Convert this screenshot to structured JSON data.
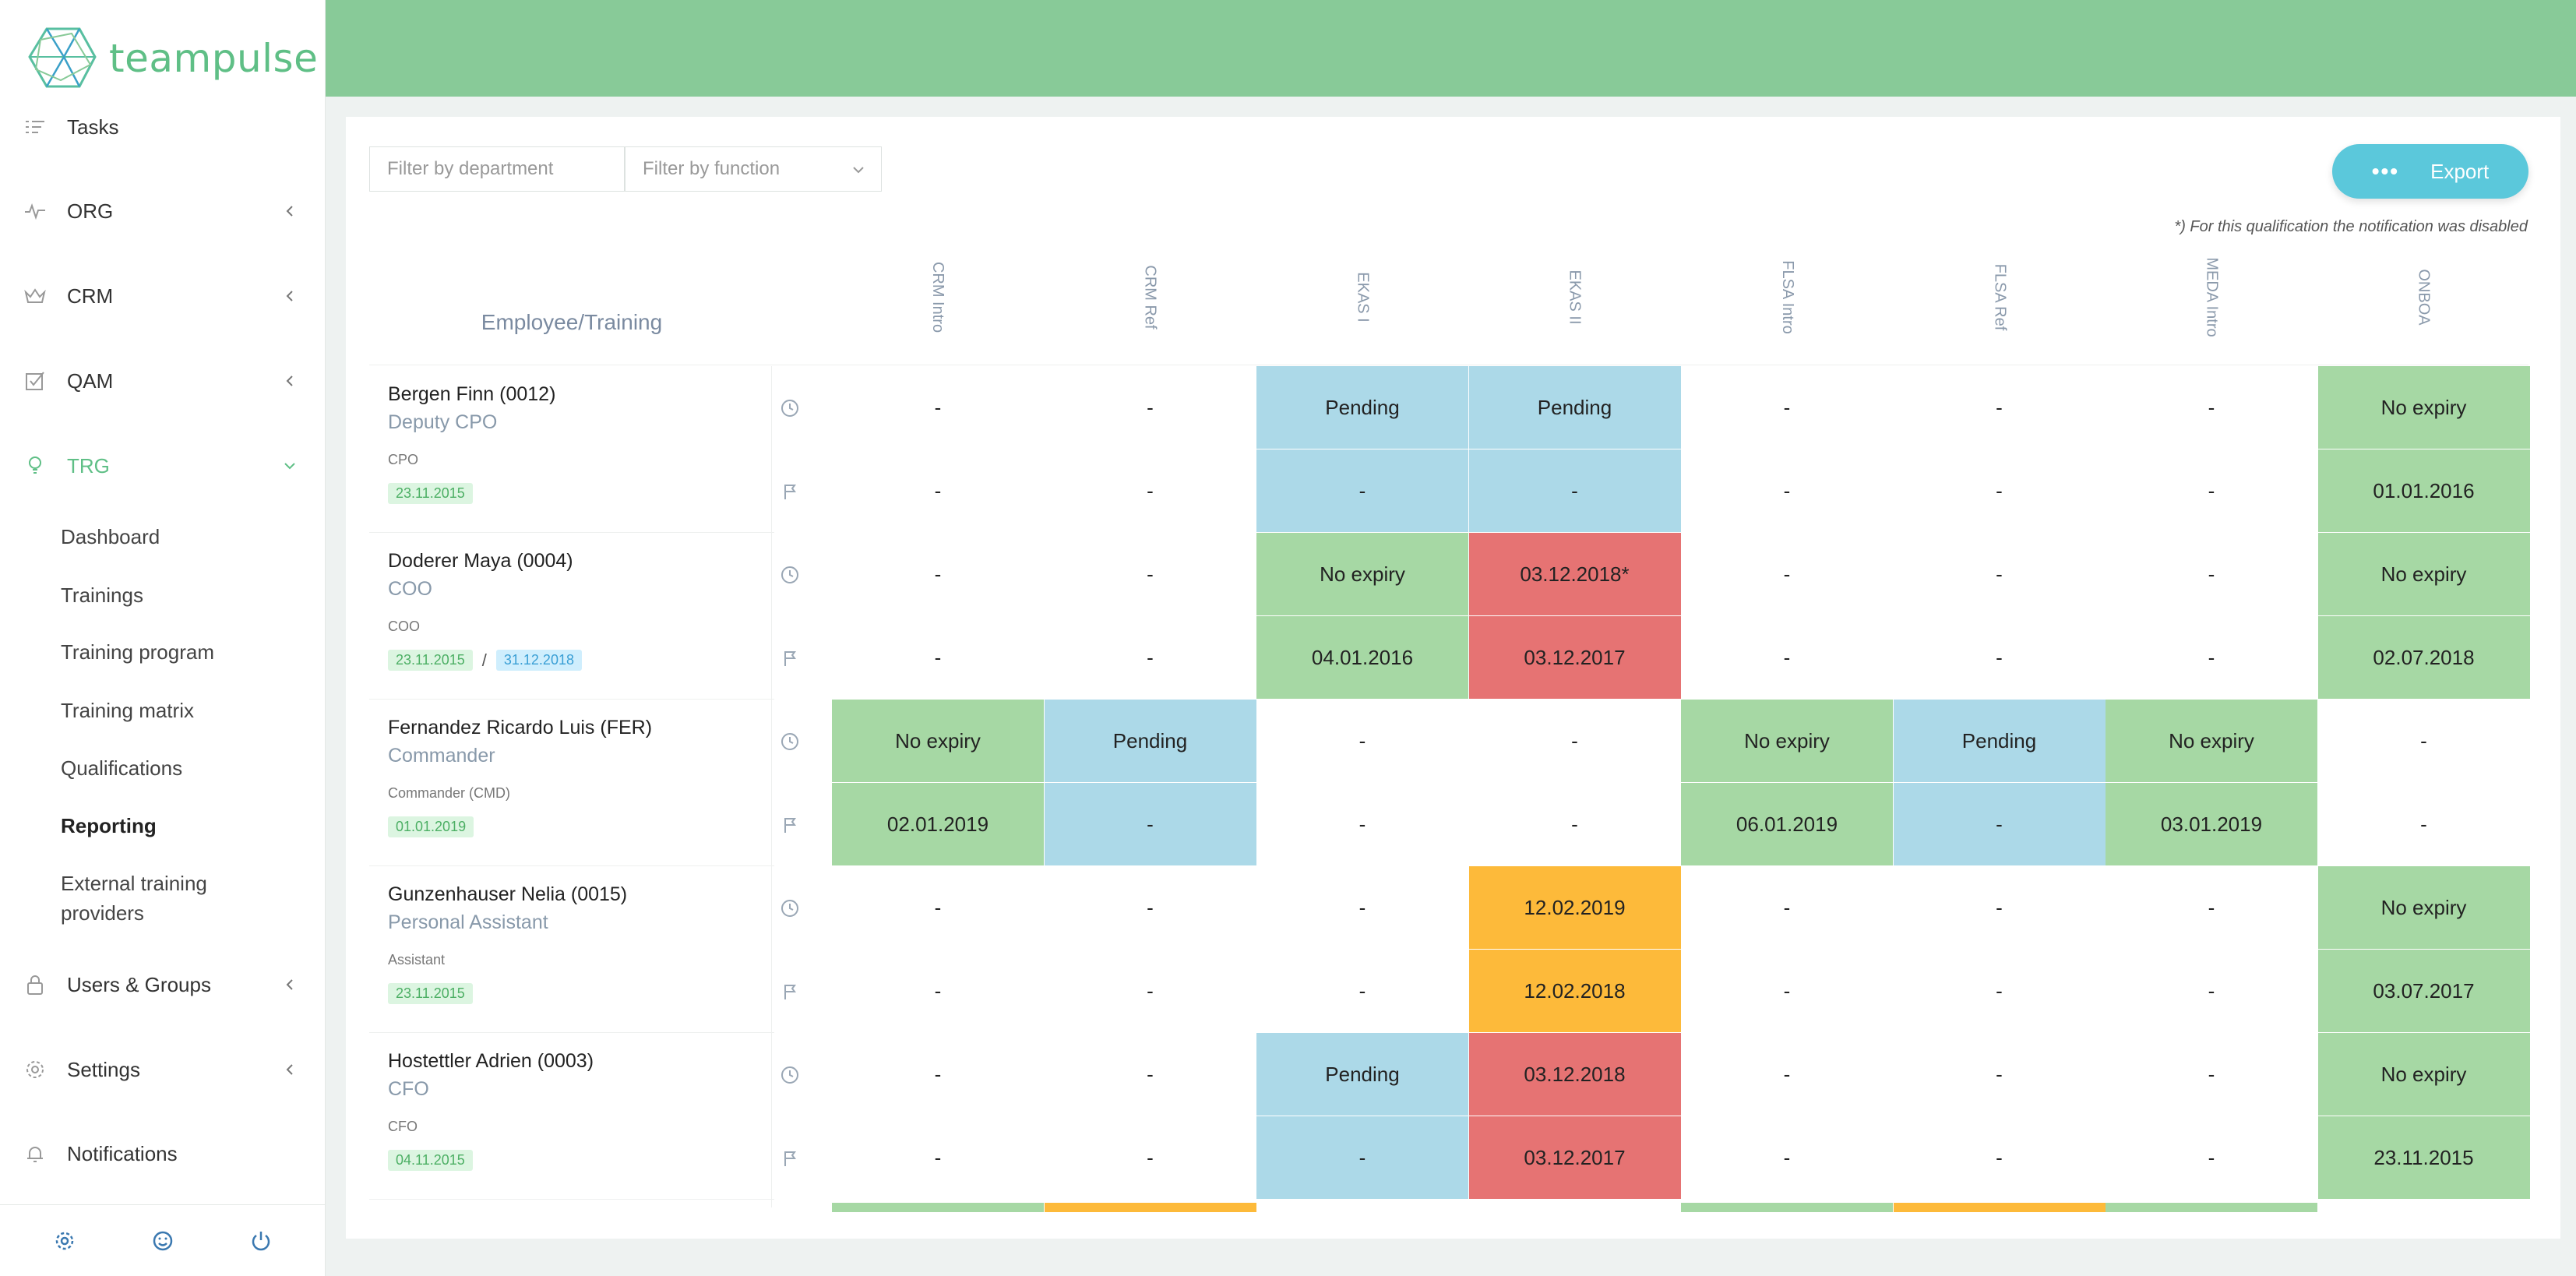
{
  "app": {
    "logo_text": "teampulse"
  },
  "nav": {
    "items": [
      {
        "key": "tasks",
        "label": "Tasks",
        "icon": "tasks-icon",
        "has_chevron": false
      },
      {
        "key": "org",
        "label": "ORG",
        "icon": "pulse-icon",
        "has_chevron": true
      },
      {
        "key": "crm",
        "label": "CRM",
        "icon": "crown-icon",
        "has_chevron": true
      },
      {
        "key": "qam",
        "label": "QAM",
        "icon": "checkbox-icon",
        "has_chevron": true
      },
      {
        "key": "trg",
        "label": "TRG",
        "icon": "bulb-icon",
        "has_chevron": true,
        "active": true
      },
      {
        "key": "users",
        "label": "Users & Groups",
        "icon": "lock-icon",
        "has_chevron": true
      },
      {
        "key": "settings",
        "label": "Settings",
        "icon": "gear-icon",
        "has_chevron": true
      },
      {
        "key": "notifications",
        "label": "Notifications",
        "icon": "bell-icon",
        "has_chevron": false
      }
    ],
    "trg_sub": [
      "Dashboard",
      "Trainings",
      "Training program",
      "Training matrix",
      "Qualifications",
      "Reporting",
      "External training",
      "providers"
    ],
    "current_sub": "Reporting"
  },
  "toolbar": {
    "filter_department_placeholder": "Filter by department",
    "filter_function_placeholder": "Filter by function",
    "export_label": "Export",
    "export_dots": "•••",
    "note": "*) For this qualification the notification was disabled"
  },
  "matrix": {
    "row_header": "Employee/Training",
    "columns": [
      "CRM Intro",
      "CRM Ref",
      "EKAS I",
      "EKAS II",
      "FLSA Intro",
      "FLSA Ref",
      "MEDA Intro",
      "ONBOA"
    ],
    "employees": [
      {
        "name": "Bergen Finn (0012)",
        "role": "Deputy CPO",
        "function": "CPO",
        "tags": [
          {
            "text": "23.11.2015",
            "color": "green"
          }
        ],
        "rows": [
          [
            [
              "-",
              "none"
            ],
            [
              "-",
              "none"
            ],
            [
              "Pending",
              "blue"
            ],
            [
              "Pending",
              "blue"
            ],
            [
              "-",
              "none"
            ],
            [
              "-",
              "none"
            ],
            [
              "-",
              "none"
            ],
            [
              "No expiry",
              "green"
            ]
          ],
          [
            [
              "-",
              "none"
            ],
            [
              "-",
              "none"
            ],
            [
              "-",
              "blue"
            ],
            [
              "-",
              "blue"
            ],
            [
              "-",
              "none"
            ],
            [
              "-",
              "none"
            ],
            [
              "-",
              "none"
            ],
            [
              "01.01.2016",
              "green"
            ]
          ]
        ]
      },
      {
        "name": "Doderer Maya (0004)",
        "role": "COO",
        "function": "COO",
        "tags": [
          {
            "text": "23.11.2015",
            "color": "green"
          },
          {
            "text": "31.12.2018",
            "color": "blue"
          }
        ],
        "tag_sep": "/",
        "rows": [
          [
            [
              "-",
              "none"
            ],
            [
              "-",
              "none"
            ],
            [
              "No expiry",
              "green"
            ],
            [
              "03.12.2018*",
              "red"
            ],
            [
              "-",
              "none"
            ],
            [
              "-",
              "none"
            ],
            [
              "-",
              "none"
            ],
            [
              "No expiry",
              "green"
            ]
          ],
          [
            [
              "-",
              "none"
            ],
            [
              "-",
              "none"
            ],
            [
              "04.01.2016",
              "green"
            ],
            [
              "03.12.2017",
              "red"
            ],
            [
              "-",
              "none"
            ],
            [
              "-",
              "none"
            ],
            [
              "-",
              "none"
            ],
            [
              "02.07.2018",
              "green"
            ]
          ]
        ]
      },
      {
        "name": "Fernandez Ricardo Luis (FER)",
        "role": "Commander",
        "function": "Commander (CMD)",
        "tags": [
          {
            "text": "01.01.2019",
            "color": "green"
          }
        ],
        "rows": [
          [
            [
              "No expiry",
              "green"
            ],
            [
              "Pending",
              "blue"
            ],
            [
              "-",
              "none"
            ],
            [
              "-",
              "none"
            ],
            [
              "No expiry",
              "green"
            ],
            [
              "Pending",
              "blue"
            ],
            [
              "No expiry",
              "green"
            ],
            [
              "-",
              "none"
            ]
          ],
          [
            [
              "02.01.2019",
              "green"
            ],
            [
              "-",
              "blue"
            ],
            [
              "-",
              "none"
            ],
            [
              "-",
              "none"
            ],
            [
              "06.01.2019",
              "green"
            ],
            [
              "-",
              "blue"
            ],
            [
              "03.01.2019",
              "green"
            ],
            [
              "-",
              "none"
            ]
          ]
        ]
      },
      {
        "name": "Gunzenhauser Nelia (0015)",
        "role": "Personal Assistant",
        "function": "Assistant",
        "tags": [
          {
            "text": "23.11.2015",
            "color": "green"
          }
        ],
        "rows": [
          [
            [
              "-",
              "none"
            ],
            [
              "-",
              "none"
            ],
            [
              "-",
              "none"
            ],
            [
              "12.02.2019",
              "orange"
            ],
            [
              "-",
              "none"
            ],
            [
              "-",
              "none"
            ],
            [
              "-",
              "none"
            ],
            [
              "No expiry",
              "green"
            ]
          ],
          [
            [
              "-",
              "none"
            ],
            [
              "-",
              "none"
            ],
            [
              "-",
              "none"
            ],
            [
              "12.02.2018",
              "orange"
            ],
            [
              "-",
              "none"
            ],
            [
              "-",
              "none"
            ],
            [
              "-",
              "none"
            ],
            [
              "03.07.2017",
              "green"
            ]
          ]
        ]
      },
      {
        "name": "Hostettler Adrien (0003)",
        "role": "CFO",
        "function": "CFO",
        "tags": [
          {
            "text": "04.11.2015",
            "color": "green"
          }
        ],
        "rows": [
          [
            [
              "-",
              "none"
            ],
            [
              "-",
              "none"
            ],
            [
              "Pending",
              "blue"
            ],
            [
              "03.12.2018",
              "red"
            ],
            [
              "-",
              "none"
            ],
            [
              "-",
              "none"
            ],
            [
              "-",
              "none"
            ],
            [
              "No expiry",
              "green"
            ]
          ],
          [
            [
              "-",
              "none"
            ],
            [
              "-",
              "none"
            ],
            [
              "-",
              "blue"
            ],
            [
              "03.12.2017",
              "red"
            ],
            [
              "-",
              "none"
            ],
            [
              "-",
              "none"
            ],
            [
              "-",
              "none"
            ],
            [
              "23.11.2015",
              "green"
            ]
          ]
        ]
      }
    ],
    "next_row_peek": [
      "green",
      "orange",
      "none",
      "none",
      "green",
      "orange",
      "green",
      "none"
    ]
  },
  "colors": {
    "header": "#88ca98",
    "accent": "#5fbf86",
    "export": "#5bc8db",
    "green": "#a6d8a4",
    "blue": "#acd9e8",
    "red": "#e67373",
    "orange": "#fdba3a"
  }
}
